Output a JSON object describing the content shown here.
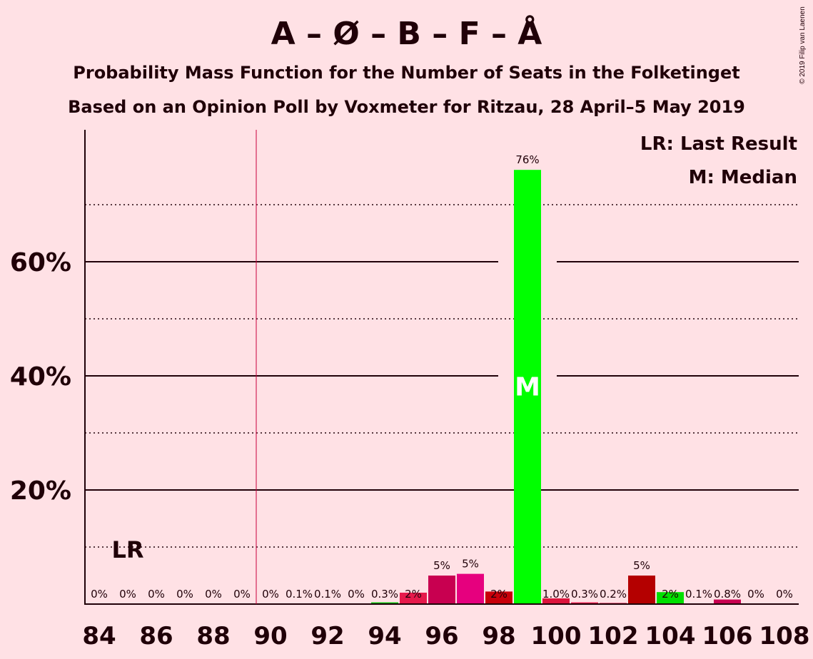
{
  "title": "A – Ø – B – F – Å",
  "subtitle_1": "Probability Mass Function for the Number of Seats in the Folketinget",
  "subtitle_2": "Based on an Opinion Poll by Voxmeter for Ritzau, 28 April–5 May 2019",
  "copyright": "© 2019 Filip van Laenen",
  "legend": {
    "last_result": "LR: Last Result",
    "median": "M: Median"
  },
  "markers": {
    "last_result_label": "LR",
    "median_label": "M"
  },
  "colors": {
    "background": "#ffe1e5",
    "axis": "#200008",
    "last_result_line": "#c8003c",
    "median_bar": "#00ff00",
    "bar_palette": [
      "#e6194b",
      "#c80050",
      "#e6007e",
      "#c8000a",
      "#00ff00",
      "#dc143c",
      "#b40000",
      "#00e000",
      "#ff1493"
    ]
  },
  "chart_data": {
    "type": "bar",
    "title": "A – Ø – B – F – Å",
    "xlabel": "",
    "ylabel": "",
    "ylim": [
      0,
      0.83
    ],
    "grid": "solid major lines every 20%, dotted minor lines every 10%",
    "x_ticks": [
      "84",
      "86",
      "88",
      "90",
      "92",
      "94",
      "96",
      "98",
      "100",
      "102",
      "104",
      "106",
      "108"
    ],
    "y_ticks": [
      {
        "value": 0.2,
        "label": "20%"
      },
      {
        "value": 0.4,
        "label": "40%"
      },
      {
        "value": 0.6,
        "label": "60%"
      }
    ],
    "last_result_seats": 89.5,
    "median_seats": 99,
    "bars": [
      {
        "seats": 84,
        "value": 0,
        "label": "0%",
        "color": "#e6194b"
      },
      {
        "seats": 85,
        "value": 0,
        "label": "0%",
        "color": "#e6194b"
      },
      {
        "seats": 86,
        "value": 0,
        "label": "0%",
        "color": "#e6194b"
      },
      {
        "seats": 87,
        "value": 0,
        "label": "0%",
        "color": "#e6194b"
      },
      {
        "seats": 88,
        "value": 0,
        "label": "0%",
        "color": "#e6194b"
      },
      {
        "seats": 89,
        "value": 0,
        "label": "0%",
        "color": "#e6194b"
      },
      {
        "seats": 90,
        "value": 0,
        "label": "0%",
        "color": "#e6194b"
      },
      {
        "seats": 91,
        "value": 0.001,
        "label": "0.1%",
        "color": "#e6194b"
      },
      {
        "seats": 92,
        "value": 0.001,
        "label": "0.1%",
        "color": "#e6194b"
      },
      {
        "seats": 93,
        "value": 0,
        "label": "0%",
        "color": "#e6194b"
      },
      {
        "seats": 94,
        "value": 0.003,
        "label": "0.3%",
        "color": "#00c000"
      },
      {
        "seats": 95,
        "value": 0.02,
        "label": "2%",
        "color": "#e6194b"
      },
      {
        "seats": 96,
        "value": 0.05,
        "label": "5%",
        "color": "#c80050"
      },
      {
        "seats": 97,
        "value": 0.053,
        "label": "5%",
        "color": "#e6007e"
      },
      {
        "seats": 98,
        "value": 0.022,
        "label": "2%",
        "color": "#c8000a"
      },
      {
        "seats": 99,
        "value": 0.761,
        "label": "76%",
        "color": "#00ff00"
      },
      {
        "seats": 100,
        "value": 0.01,
        "label": "1.0%",
        "color": "#dc143c"
      },
      {
        "seats": 101,
        "value": 0.003,
        "label": "0.3%",
        "color": "#e6194b"
      },
      {
        "seats": 102,
        "value": 0.002,
        "label": "0.2%",
        "color": "#e6194b"
      },
      {
        "seats": 103,
        "value": 0.05,
        "label": "5%",
        "color": "#b40000"
      },
      {
        "seats": 104,
        "value": 0.021,
        "label": "2%",
        "color": "#00e000"
      },
      {
        "seats": 105,
        "value": 0.001,
        "label": "0.1%",
        "color": "#e6194b"
      },
      {
        "seats": 106,
        "value": 0.008,
        "label": "0.8%",
        "color": "#c80050"
      },
      {
        "seats": 107,
        "value": 0,
        "label": "0%",
        "color": "#e6194b"
      },
      {
        "seats": 108,
        "value": 0,
        "label": "0%",
        "color": "#e6194b"
      }
    ]
  }
}
